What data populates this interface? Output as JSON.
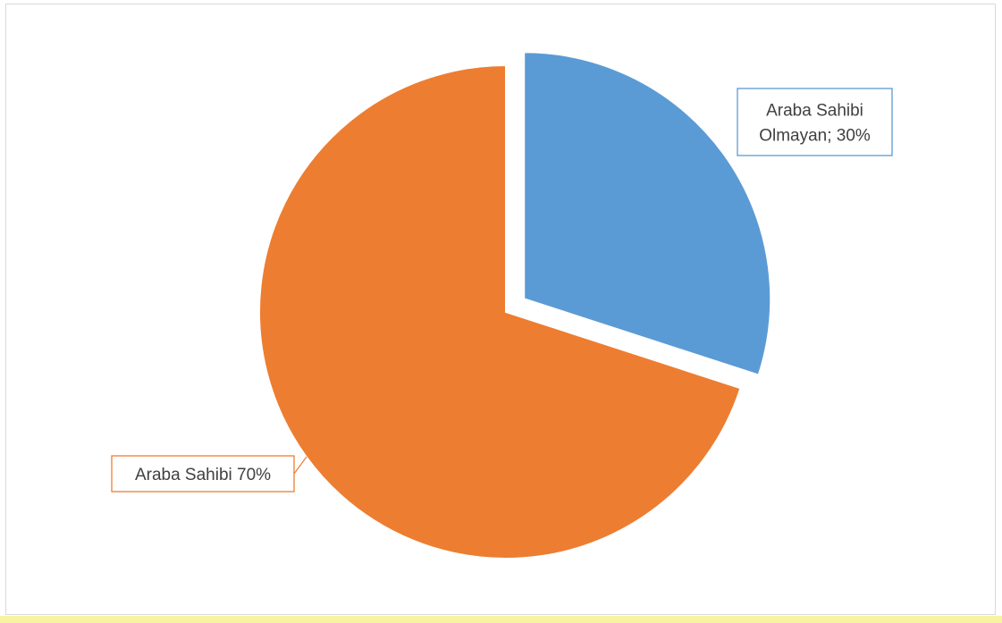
{
  "chart_data": {
    "type": "pie",
    "title": "",
    "slices": [
      {
        "label": "Araba Sahibi Olmayan; 30%",
        "label_lines": [
          "Araba Sahibi",
          "Olmayan; 30%"
        ],
        "value": 30,
        "color": "#5b9bd5",
        "exploded": true
      },
      {
        "label": "Araba Sahibi 70%",
        "label_lines": [
          "Araba Sahibi 70%"
        ],
        "value": 70,
        "color": "#ed7d31",
        "exploded": false
      }
    ],
    "legend": "none",
    "data_labels": true
  }
}
